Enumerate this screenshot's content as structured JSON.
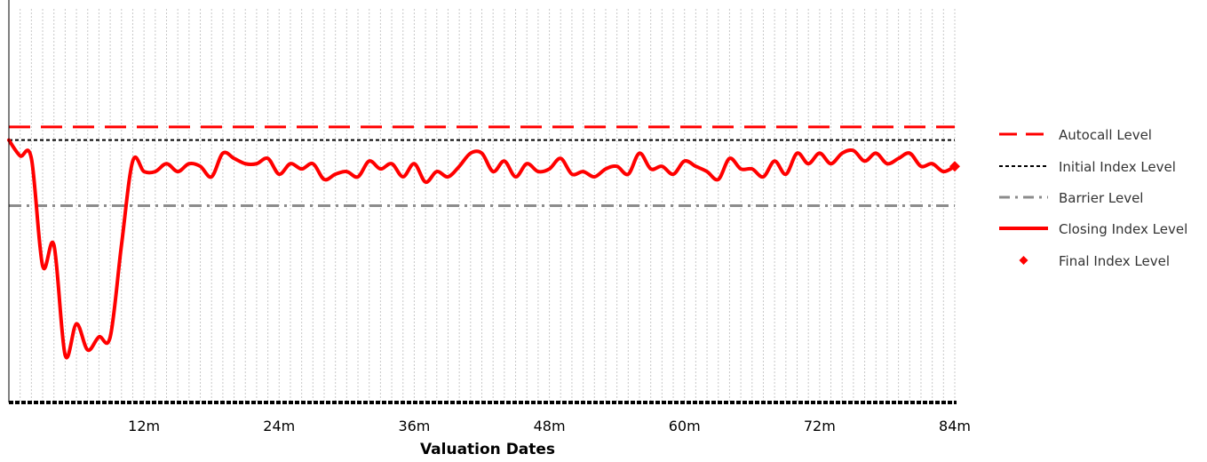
{
  "chart_data": {
    "type": "line",
    "title": "",
    "xlabel": "Valuation Dates",
    "ylabel": "",
    "x_range": [
      0,
      84
    ],
    "y_range": [
      0,
      150
    ],
    "x_ticks": [
      12,
      24,
      36,
      48,
      60,
      72,
      84
    ],
    "x_tick_labels": [
      "12m",
      "24m",
      "36m",
      "48m",
      "60m",
      "72m",
      "84m"
    ],
    "grid": {
      "vertical": true,
      "horizontal": false
    },
    "legend_position": "right",
    "colors": {
      "autocall": "#ff0000",
      "initial": "#000000",
      "barrier": "#8c8c8c",
      "closing": "#ff0000",
      "final": "#ff0000",
      "grid": "#c8c8c8"
    },
    "reference_lines": [
      {
        "key": "autocall",
        "name": "Autocall Level",
        "value": 105
      },
      {
        "key": "initial",
        "name": "Initial Index Level",
        "value": 100
      },
      {
        "key": "barrier",
        "name": "Barrier Level",
        "value": 75
      }
    ],
    "series": [
      {
        "key": "closing",
        "name": "Closing Index Level",
        "x": [
          0,
          1,
          2,
          3,
          4,
          5,
          6,
          7,
          8,
          9,
          10,
          11,
          12,
          13,
          14,
          15,
          16,
          17,
          18,
          19,
          20,
          21,
          22,
          23,
          24,
          25,
          26,
          27,
          28,
          29,
          30,
          31,
          32,
          33,
          34,
          35,
          36,
          37,
          38,
          39,
          40,
          41,
          42,
          43,
          44,
          45,
          46,
          47,
          48,
          49,
          50,
          51,
          52,
          53,
          54,
          55,
          56,
          57,
          58,
          59,
          60,
          61,
          62,
          63,
          64,
          65,
          66,
          67,
          68,
          69,
          70,
          71,
          72,
          73,
          74,
          75,
          76,
          77,
          78,
          79,
          80,
          81,
          82,
          83,
          84
        ],
        "y": [
          100,
          94,
          93,
          52,
          60,
          18,
          30,
          20,
          25,
          25,
          60,
          92,
          88,
          88,
          91,
          88,
          91,
          90,
          86,
          95,
          93,
          91,
          91,
          93,
          87,
          91,
          89,
          91,
          85,
          87,
          88,
          86,
          92,
          89,
          91,
          86,
          91,
          84,
          88,
          86,
          90,
          95,
          95,
          88,
          92,
          86,
          91,
          88,
          89,
          93,
          87,
          88,
          86,
          89,
          90,
          87,
          95,
          89,
          90,
          87,
          92,
          90,
          88,
          85,
          93,
          89,
          89,
          86,
          92,
          87,
          95,
          91,
          95,
          91,
          95,
          96,
          92,
          95,
          91,
          93,
          95,
          90,
          91,
          88,
          90
        ]
      }
    ],
    "final_point": {
      "name": "Final Index Level",
      "x": 84,
      "y": 90
    }
  }
}
